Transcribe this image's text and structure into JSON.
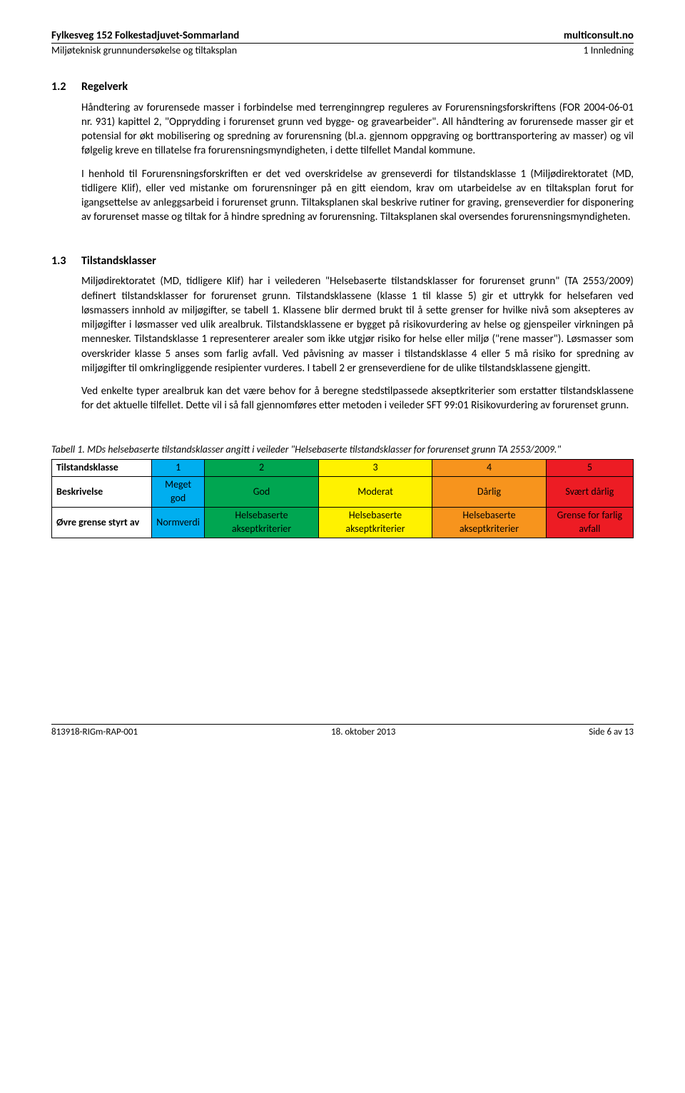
{
  "header": {
    "title_left": "Fylkesveg 152 Folkestadjuvet-Sommarland",
    "title_right": "multiconsult.no",
    "sub_left": "Miljøteknisk grunnundersøkelse og tiltaksplan",
    "sub_right": "1 Innledning"
  },
  "sections": [
    {
      "num": "1.2",
      "title": "Regelverk",
      "paragraphs": [
        "Håndtering av forurensede masser i forbindelse med terrenginngrep reguleres av Forurensningsforskriftens (FOR 2004-06-01 nr. 931) kapittel 2, \"Opprydding i forurenset grunn ved bygge- og gravearbeider\". All håndtering av forurensede masser gir et potensial for økt mobilisering og spredning av forurensning (bl.a. gjennom oppgraving og borttransportering av masser) og vil følgelig kreve en tillatelse fra forurensningsmyndigheten, i dette tilfellet Mandal kommune.",
        "I henhold til Forurensningsforskriften er det ved overskridelse av grenseverdi for tilstandsklasse 1 (Miljødirektoratet (MD, tidligere Klif), eller ved mistanke om forurensninger på en gitt eiendom, krav om utarbeidelse av en tiltaksplan forut for igangsettelse av anleggsarbeid i forurenset grunn. Tiltaksplanen skal beskrive rutiner for graving, grenseverdier for disponering av forurenset masse og tiltak for å hindre spredning av forurensning. Tiltaksplanen skal oversendes forurensningsmyndigheten."
      ]
    },
    {
      "num": "1.3",
      "title": "Tilstandsklasser",
      "paragraphs": [
        "Miljødirektoratet (MD, tidligere Klif) har i veilederen \"Helsebaserte tilstandsklasser for forurenset grunn\" (TA 2553/2009) definert tilstandsklasser for forurenset grunn. Tilstandsklassene (klasse 1 til klasse 5) gir et uttrykk for helsefaren ved løsmassers innhold av miljøgifter, se tabell 1. Klassene blir dermed brukt til å sette grenser for hvilke nivå som aksepteres av miljøgifter i løsmasser ved ulik arealbruk. Tilstandsklassene er bygget på risikovurdering av helse og gjenspeiler virkningen på mennesker. Tilstandsklasse 1 representerer arealer som ikke utgjør risiko for helse eller miljø (\"rene masser\"). Løsmasser som overskrider klasse 5 anses som farlig avfall. Ved påvisning av masser i tilstandsklasse 4 eller 5 må risiko for spredning av miljøgifter til omkringliggende resipienter vurderes. I tabell 2 er grenseverdiene for de ulike tilstandsklassene gjengitt.",
        "Ved enkelte typer arealbruk kan det være behov for å beregne stedstilpassede akseptkriterier som erstatter tilstandsklassene for det aktuelle tilfellet. Dette vil i så fall gjennomføres etter metoden i veileder SFT 99:01 Risikovurdering av forurenset grunn."
      ]
    }
  ],
  "table": {
    "caption": "Tabell 1. MDs helsebaserte tilstandsklasser angitt i veileder \"Helsebaserte tilstandsklasser for forurenset grunn TA 2553/2009.\"",
    "row_headers": [
      "Tilstandsklasse",
      "Beskrivelse",
      "Øvre grense styrt av"
    ],
    "columns": [
      {
        "class": "1",
        "desc": "Meget god",
        "limit": "Normverdi",
        "color": "#00aeef"
      },
      {
        "class": "2",
        "desc": "God",
        "limit": "Helsebaserte akseptkriterier",
        "color": "#00a651"
      },
      {
        "class": "3",
        "desc": "Moderat",
        "limit": "Helsebaserte akseptkriterier",
        "color": "#fff200"
      },
      {
        "class": "4",
        "desc": "Dårlig",
        "limit": "Helsebaserte akseptkriterier",
        "color": "#f7941d"
      },
      {
        "class": "5",
        "desc": "Svært dårlig",
        "limit": "Grense for farlig avfall",
        "color": "#ed1c24"
      }
    ],
    "column_width_rowhead": "140px"
  },
  "footer": {
    "left": "813918-RIGm-RAP-001",
    "center": "18. oktober 2013",
    "right": "Side 6 av 13"
  }
}
